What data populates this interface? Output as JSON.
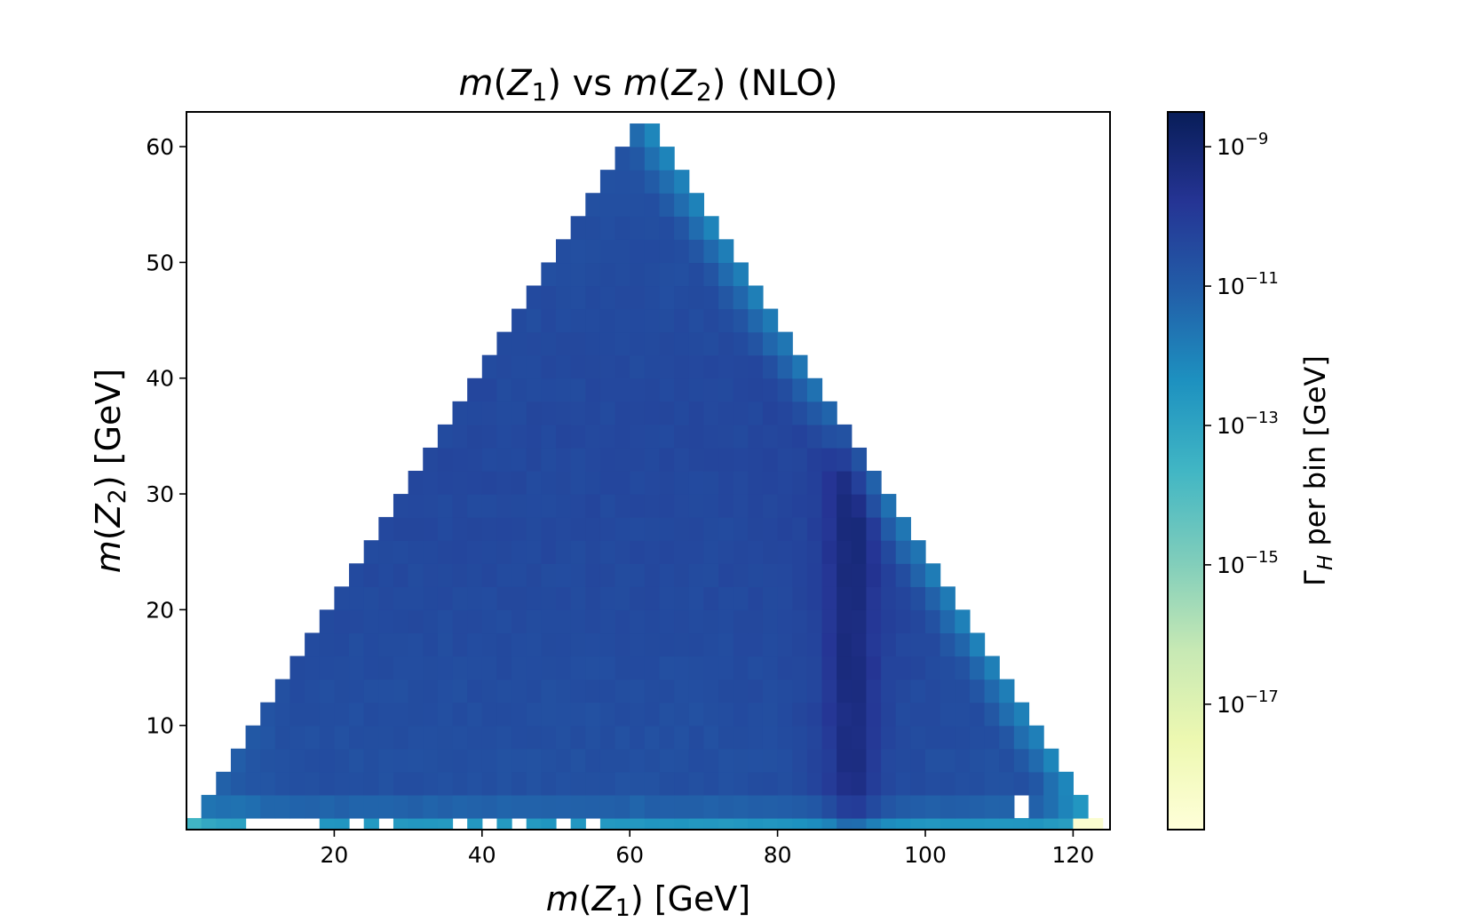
{
  "chart_data": {
    "type": "heatmap",
    "title": {
      "p1": "m",
      "p2": "(",
      "p3": "Z",
      "p4": "1",
      "p5": ") vs ",
      "p6": "m",
      "p7": "(",
      "p8": "Z",
      "p9": "2",
      "p10": ") (NLO)"
    },
    "xlabel": {
      "p1": "m",
      "p2": "(",
      "p3": "Z",
      "p4": "1",
      "p5": ") [GeV]"
    },
    "ylabel": {
      "p1": "m",
      "p2": "(",
      "p3": "Z",
      "p4": "2",
      "p5": ") [GeV]"
    },
    "colorbar_label": {
      "p1": "Γ",
      "p2": "H",
      "p3": " per bin [GeV]"
    },
    "x_range": [
      0,
      125
    ],
    "y_range": [
      0,
      63
    ],
    "y_plot_min": 1,
    "bin_width_x": 2,
    "bin_width_y": 2,
    "x_ticks": [
      "20",
      "40",
      "60",
      "80",
      "100",
      "120"
    ],
    "y_ticks": [
      "10",
      "20",
      "30",
      "40",
      "50",
      "60"
    ],
    "colorbar": {
      "scale": "log10",
      "range": [
        -18.8,
        -8.5
      ],
      "ticks": [
        {
          "base": "10",
          "exp": "−9",
          "value": -9
        },
        {
          "base": "10",
          "exp": "−11",
          "value": -11
        },
        {
          "base": "10",
          "exp": "−13",
          "value": -13
        },
        {
          "base": "10",
          "exp": "−15",
          "value": -15
        },
        {
          "base": "10",
          "exp": "−17",
          "value": -17
        }
      ]
    },
    "description": "2D histogram of Higgs partial width per bin over m(Z1) and m(Z2). Triangular allowed region m(Z1)+m(Z2) < 125 GeV, peak near m(Z1)=90 GeV.",
    "higgs_mass": 125,
    "z_peak_position": 90,
    "empty_bins_bottom_row": [
      9,
      11,
      13,
      15,
      17,
      23,
      27,
      37,
      41,
      45,
      51,
      55
    ],
    "empty_bins_second_row": [
      113
    ]
  },
  "colors": {
    "colormap": [
      "#ffffd9",
      "#edf8b1",
      "#c7e9b4",
      "#7fcdbb",
      "#41b6c4",
      "#1d91c0",
      "#225ea8",
      "#253494",
      "#081d58"
    ]
  }
}
